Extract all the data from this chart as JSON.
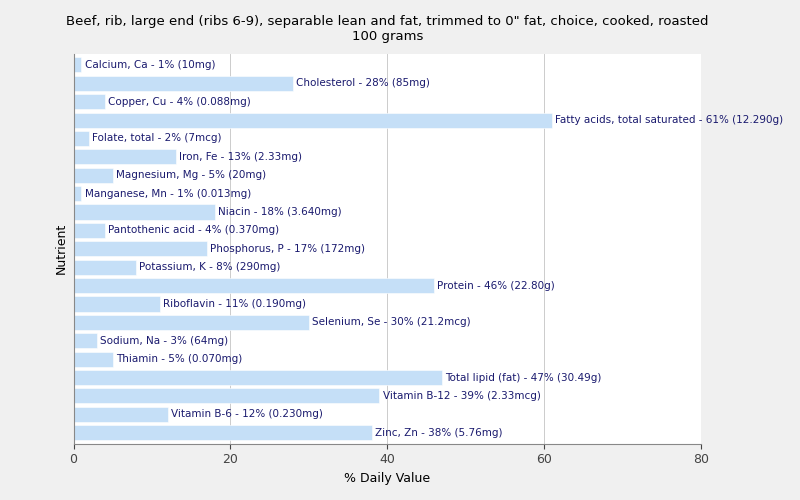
{
  "title": "Beef, rib, large end (ribs 6-9), separable lean and fat, trimmed to 0\" fat, choice, cooked, roasted\n100 grams",
  "xlabel": "% Daily Value",
  "ylabel": "Nutrient",
  "xlim": [
    0,
    80
  ],
  "xticks": [
    0,
    20,
    40,
    60,
    80
  ],
  "bar_color": "#c5dff7",
  "background_color": "#f0f0f0",
  "plot_bg_color": "#ffffff",
  "text_color": "#1a1a6e",
  "nutrients": [
    {
      "label": "Calcium, Ca - 1% (10mg)",
      "value": 1
    },
    {
      "label": "Cholesterol - 28% (85mg)",
      "value": 28
    },
    {
      "label": "Copper, Cu - 4% (0.088mg)",
      "value": 4
    },
    {
      "label": "Fatty acids, total saturated - 61% (12.290g)",
      "value": 61
    },
    {
      "label": "Folate, total - 2% (7mcg)",
      "value": 2
    },
    {
      "label": "Iron, Fe - 13% (2.33mg)",
      "value": 13
    },
    {
      "label": "Magnesium, Mg - 5% (20mg)",
      "value": 5
    },
    {
      "label": "Manganese, Mn - 1% (0.013mg)",
      "value": 1
    },
    {
      "label": "Niacin - 18% (3.640mg)",
      "value": 18
    },
    {
      "label": "Pantothenic acid - 4% (0.370mg)",
      "value": 4
    },
    {
      "label": "Phosphorus, P - 17% (172mg)",
      "value": 17
    },
    {
      "label": "Potassium, K - 8% (290mg)",
      "value": 8
    },
    {
      "label": "Protein - 46% (22.80g)",
      "value": 46
    },
    {
      "label": "Riboflavin - 11% (0.190mg)",
      "value": 11
    },
    {
      "label": "Selenium, Se - 30% (21.2mcg)",
      "value": 30
    },
    {
      "label": "Sodium, Na - 3% (64mg)",
      "value": 3
    },
    {
      "label": "Thiamin - 5% (0.070mg)",
      "value": 5
    },
    {
      "label": "Total lipid (fat) - 47% (30.49g)",
      "value": 47
    },
    {
      "label": "Vitamin B-12 - 39% (2.33mcg)",
      "value": 39
    },
    {
      "label": "Vitamin B-6 - 12% (0.230mg)",
      "value": 12
    },
    {
      "label": "Zinc, Zn - 38% (5.76mg)",
      "value": 38
    }
  ]
}
